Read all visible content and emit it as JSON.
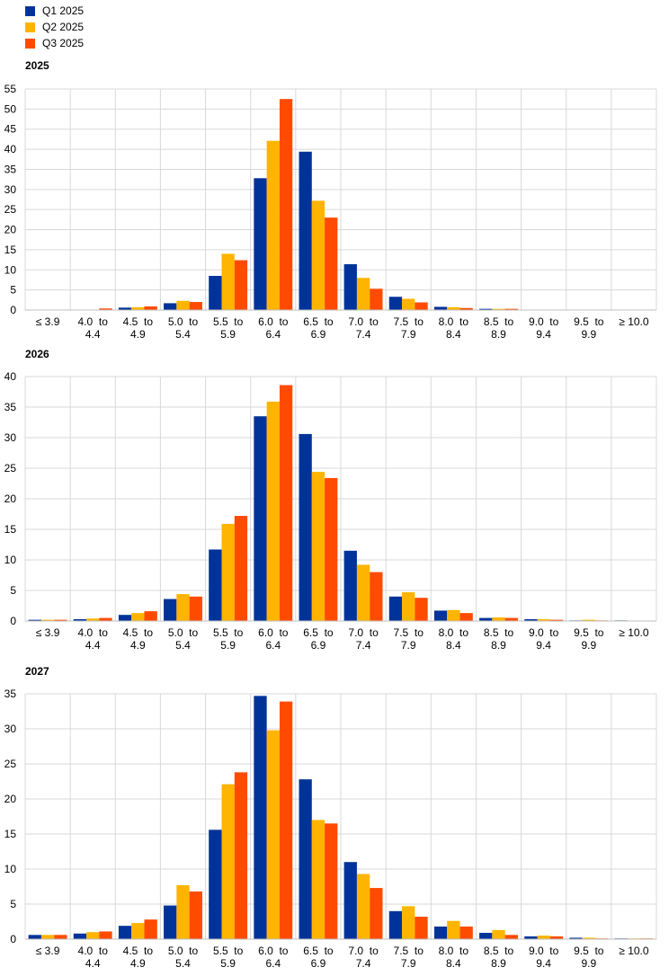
{
  "legend": [
    {
      "name": "Q1 2025",
      "color": "#003399"
    },
    {
      "name": "Q2 2025",
      "color": "#FFB400"
    },
    {
      "name": "Q3 2025",
      "color": "#FF4B00"
    }
  ],
  "chart_data": [
    {
      "type": "bar",
      "title": "2025",
      "categories": [
        [
          "≤ 3.9",
          ""
        ],
        [
          "4.0  to",
          "4.4"
        ],
        [
          "4.5  to",
          "4.9"
        ],
        [
          "5.0  to",
          "5.4"
        ],
        [
          "5.5  to",
          "5.9"
        ],
        [
          "6.0  to",
          "6.4"
        ],
        [
          "6.5  to",
          "6.9"
        ],
        [
          "7.0  to",
          "7.4"
        ],
        [
          "7.5  to",
          "7.9"
        ],
        [
          "8.0  to",
          "8.4"
        ],
        [
          "8.5  to",
          "8.9"
        ],
        [
          "9.0  to",
          "9.4"
        ],
        [
          "9.5  to",
          "9.9"
        ],
        [
          "≥ 10.0",
          ""
        ]
      ],
      "ylim": [
        0,
        55
      ],
      "yticks": [
        0,
        5,
        10,
        15,
        20,
        25,
        30,
        35,
        40,
        45,
        50,
        55
      ],
      "grid": true,
      "series": [
        {
          "name": "Q1 2025",
          "values": [
            0.0,
            0.1,
            0.6,
            1.7,
            8.5,
            32.8,
            39.4,
            11.4,
            3.3,
            0.8,
            0.3,
            0.1,
            0.0,
            0.0
          ]
        },
        {
          "name": "Q2 2025",
          "values": [
            0.0,
            0.1,
            0.7,
            2.3,
            14.0,
            42.1,
            27.2,
            8.0,
            2.8,
            0.7,
            0.3,
            0.0,
            0.0,
            0.0
          ]
        },
        {
          "name": "Q3 2025",
          "values": [
            0.0,
            0.4,
            0.9,
            2.0,
            12.4,
            52.5,
            23.0,
            5.3,
            1.9,
            0.5,
            0.3,
            0.0,
            0.0,
            0.0
          ]
        }
      ]
    },
    {
      "type": "bar",
      "title": "2026",
      "categories": [
        [
          "≤ 3.9",
          ""
        ],
        [
          "4.0  to",
          "4.4"
        ],
        [
          "4.5  to",
          "4.9"
        ],
        [
          "5.0  to",
          "5.4"
        ],
        [
          "5.5  to",
          "5.9"
        ],
        [
          "6.0  to",
          "6.4"
        ],
        [
          "6.5  to",
          "6.9"
        ],
        [
          "7.0  to",
          "7.4"
        ],
        [
          "7.5  to",
          "7.9"
        ],
        [
          "8.0  to",
          "8.4"
        ],
        [
          "8.5  to",
          "8.9"
        ],
        [
          "9.0  to",
          "9.4"
        ],
        [
          "9.5  to",
          "9.9"
        ],
        [
          "≥ 10.0",
          ""
        ]
      ],
      "ylim": [
        0,
        40
      ],
      "yticks": [
        0,
        5,
        10,
        15,
        20,
        25,
        30,
        35,
        40
      ],
      "grid": true,
      "series": [
        {
          "name": "Q1 2025",
          "values": [
            0.2,
            0.3,
            1.0,
            3.6,
            11.7,
            33.5,
            30.6,
            11.5,
            4.0,
            1.7,
            0.5,
            0.3,
            0.1,
            0.1
          ]
        },
        {
          "name": "Q2 2025",
          "values": [
            0.2,
            0.4,
            1.3,
            4.4,
            15.9,
            35.9,
            24.4,
            9.2,
            4.7,
            1.8,
            0.6,
            0.3,
            0.2,
            0.0
          ]
        },
        {
          "name": "Q3 2025",
          "values": [
            0.2,
            0.5,
            1.6,
            4.0,
            17.2,
            38.6,
            23.4,
            8.0,
            3.8,
            1.3,
            0.5,
            0.2,
            0.1,
            0.0
          ]
        }
      ]
    },
    {
      "type": "bar",
      "title": "2027",
      "categories": [
        [
          "≤ 3.9",
          ""
        ],
        [
          "4.0  to",
          "4.4"
        ],
        [
          "4.5  to",
          "4.9"
        ],
        [
          "5.0  to",
          "5.4"
        ],
        [
          "5.5  to",
          "5.9"
        ],
        [
          "6.0  to",
          "6.4"
        ],
        [
          "6.5  to",
          "6.9"
        ],
        [
          "7.0  to",
          "7.4"
        ],
        [
          "7.5  to",
          "7.9"
        ],
        [
          "8.0  to",
          "8.4"
        ],
        [
          "8.5  to",
          "8.9"
        ],
        [
          "9.0  to",
          "9.4"
        ],
        [
          "9.5  to",
          "9.9"
        ],
        [
          "≥ 10.0",
          ""
        ]
      ],
      "ylim": [
        0,
        35
      ],
      "yticks": [
        0,
        5,
        10,
        15,
        20,
        25,
        30,
        35
      ],
      "grid": true,
      "series": [
        {
          "name": "Q1 2025",
          "values": [
            0.6,
            0.8,
            1.9,
            4.8,
            15.6,
            34.7,
            22.8,
            11.0,
            4.0,
            1.8,
            0.9,
            0.4,
            0.2,
            0.1
          ]
        },
        {
          "name": "Q2 2025",
          "values": [
            0.6,
            1.0,
            2.3,
            7.7,
            22.1,
            29.8,
            17.0,
            9.3,
            4.7,
            2.6,
            1.3,
            0.5,
            0.2,
            0.1
          ]
        },
        {
          "name": "Q3 2025",
          "values": [
            0.6,
            1.1,
            2.8,
            6.8,
            23.8,
            33.9,
            16.5,
            7.3,
            3.2,
            1.8,
            0.6,
            0.4,
            0.1,
            0.1
          ]
        }
      ]
    }
  ]
}
